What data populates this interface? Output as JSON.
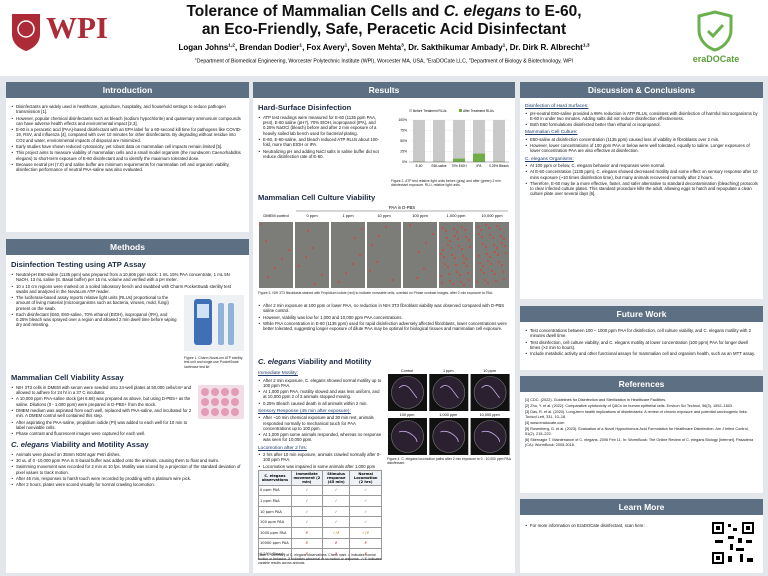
{
  "header": {
    "logo_left": "WPI",
    "title_1": "Tolerance of Mammalian Cells and ",
    "title_italic": "C. elegans",
    "title_2": " to E-60,",
    "title_line2": "an Eco-Friendly, Safe, Peracetic Acid Disinfectant",
    "authors": [
      {
        "name": "Logan Johns",
        "sup": "1,2"
      },
      {
        "name": "Brendan Dodier",
        "sup": "1"
      },
      {
        "name": "Fox Avery",
        "sup": "1"
      },
      {
        "name": "Soven Mehta",
        "sup": "3"
      },
      {
        "name": "Dr. Sakthikumar Ambady",
        "sup": "1"
      },
      {
        "name": "Dr. Dirk R. Albrecht",
        "sup": "1,3"
      }
    ],
    "affiliations": [
      {
        "sup": "1",
        "text": "Department of Biomedical Engineering, Worcester Polytechnic Institute (WPI), Worcester MA, USA, "
      },
      {
        "sup": "2",
        "text": "EraDOCate LLC, "
      },
      {
        "sup": "3",
        "text": "Department of Biology & Biotechnology, WPI"
      }
    ],
    "logo_right": "eraDOCate"
  },
  "introduction": {
    "heading": "Introduction",
    "bullets": [
      "Disinfectants are widely used in healthcare, agriculture, hospitality, and household settings to reduce pathogen transmission [1].",
      "However, popular chemical disinfectants such as bleach (sodium hypochlorite) and quaternary ammonium compounds can have adverse health effects and environmental impact [2,3].",
      "E-60 is a peracetic acid (PAA)-based disinfectant with an EPA label for a 60-second kill time for pathogens like COVID-19, RSV, and influenza [4], compared with over 10 minutes for other disinfectants. By degrading without residue into CO2 and water, environmental impacts of disposal are minimized.",
      "Early studies have shown reduced cytotoxicity, yet robust data on mammalian cell impacts remain limited [5].",
      "This project aims to measure viability of mammalian cells and a small model organism (the roundworm Caenorhabditis elegans) to short-term exposure of E-60 disinfectant and to identify the maximum tolerated dose.",
      "Because neutral pH (7.0) and saline buffer are minimum requirements for mammalian cell and organism viability, disinfection performance of neutral PAA-saline was also evaluated."
    ]
  },
  "methods": {
    "heading": "Methods",
    "atp": {
      "title": "Disinfection Testing using ATP Assay",
      "bullets": [
        "Neutral-pH E60-saline (1135 ppm) was prepared from a 10,606 ppm stock: 1 mL 15% PAA concentrate, 1 mL 5N NaOH, 13 mL saline (S. Basal buffer) per 15 mL volume and verified with a pH meter.",
        "10 x 10 cm regions were marked on a soiled laboratory bench and swabbed with Charm PocketSwab sterility test swabs and analyzed in the NovaLum ATP reader.",
        "The luciferase-based assay reports relative light units (RLUs) proportional to the amount of living material (microorganisms such as bacteria, viruses, mold, fungi) present on the swab.",
        "Each disinfectant (E60, E60-saline, 70% ethanol (EtOH), isopropanol (IPA), and 0.25% bleach was sprayed over a region and allowed 2 min dwell time before wiping dry and retesting."
      ],
      "figure1_caption": "Figure 1. Charm NovaLum ATP sterility test unit and single-use PocketSwab luciferase test kit"
    },
    "mammalian": {
      "title": "Mammalian Cell Viability Assay",
      "bullets": [
        "NIH 3T3 cells in DMEM with serum were seeded onto 24-well plates at 50,000 cells/cm² and allowed to adhere for 24 hr in a 37 C incubator.",
        "A 10,000 ppm PAA-saline stock (pH 6.68) was prepared as above, but using D-PBS+ as the saline. Dilutions (0 - 1,000 ppm) were prepared in D-PBS+ from the stock.",
        "DMEM medium was aspirated from each well, replaced with PAA-saline, and incubated for 2 min. A DMEM control well contained this step.",
        "After aspirating the PAA-saline, propidium iodide (PI) was added to each well for 10 min to label nonviable cells.",
        "Phase contrast and fluorescent images were captured for each well."
      ]
    },
    "elegans": {
      "title_italic": "C. elegans",
      "title_rest": " Viability and Motility Assay",
      "bullets": [
        "Animals were placed on 35mm NGM agar Petri dishes.",
        "30 uL of 0 -10,000 ppm PAA in S-basal buffer was added onto the animals, causing them to float and swim.",
        "Swimming movement was recorded for 2 min at 10 fps. Motility was scored by a projection of the standard deviation of pixel values to track motion.",
        "After 45 min, responses to harsh touch were recorded by prodding with a platinum wire pick.",
        "After 2 hours, plates were scored visually for normal crawling locomotion."
      ]
    }
  },
  "results": {
    "heading": "Results",
    "hard_surface": {
      "title": "Hard-Surface Disinfection",
      "bullets": [
        "ATP test readings were measured for E-60 (1135 ppm PAA, pH4), E-60 saline (pH7), 70% EtOH, isopropanol (IPA), and 0.25% NaOCl (bleach) before and after 2 min exposure of a heavily soiled lab bench used for bacterial plating.",
        "E-60, E-60-saline, and bleach reduced ATP RLUs about 100-fold, more than EtOH or IPA.",
        "Neutralizing pH and adding NaCl salts in saline buffer did not reduce disinfection rate of E-60."
      ],
      "figure2_caption": "Figure 2. ATP test relative light units before (gray) and after (green) 2 min disinfectant exposure. RLU, relative light units."
    },
    "cell": {
      "title": "Mammalian Cell Culture Viability",
      "figure3": {
        "group_label": "PAA in D-PBS",
        "columns": [
          "DMEM control",
          "0 ppm",
          "1 ppm",
          "10 ppm",
          "100 ppm",
          "1,000 ppm",
          "10,000 ppm"
        ],
        "caption": "Figure 3. NIH 3T3 fibroblasts stained with Propidium Iodide (red) to indicate nonviable cells, overlaid on Phase contrast images, after 2 min exposure to PAA."
      },
      "bullets": [
        "After 2 min exposure at 100 ppm or lower PAA, no reduction in NIH 3T3 fibroblast viability was observed compared with D-PBS saline control.",
        "However, viability was low for 1,000 and 10,000 ppm PAA concentrations.",
        "While PAA concentration in E-60 (1135 ppm) used for rapid disinfection adversely affected fibroblasts, lower concentrations were better tolerated, suggesting longer exposure of dilute PAA may be optimal for biological tissues and mammalian cell exposure."
      ]
    },
    "elegans": {
      "title_italic": "C. elegans",
      "title_rest": " Viability and Motility",
      "blocks": [
        {
          "title": "Immediate Motility:",
          "bullets": [
            "After 2 min exposure, C. elegans showed normal motility up to 100 ppm PAA.",
            "At 1,000 ppm PAA, motility slowed and was less uniform, and at 10,000 ppm 2 of 3 animals stopped moving.",
            "0.25% Bleach caused death in all animals within 2 min."
          ]
        },
        {
          "title": "Sensory Response (45 min after exposure):",
          "bullets": [
            "After ~10 min chemical exposure and 30 min rest, animals responded normally to mechanical touch for PAA concentrations up to 100 ppm.",
            "At 1,000 ppm some animals responded, whereas no response was seen for 10,000 ppm."
          ]
        },
        {
          "title": "Locomotion after 2 hrs:",
          "bullets": [
            "2 hrs after 10 min exposure, animals crawled normally after 0-100 ppm PAA.",
            "Locomotion was impaired in some animals after 1,000 ppm PAA and all exposed to 10,000 ppm."
          ]
        }
      ],
      "figure4": {
        "labels": [
          "Control",
          "1 ppm",
          "10 ppm",
          "100 ppm",
          "1,000 ppm",
          "10,000 ppm"
        ],
        "caption": "Figure 4. C. elegans locomotion paths after 2 min exposure to 0 - 10,000 ppm PAA disinfectant."
      },
      "table": {
        "header": [
          "C. elegans observations",
          "Immediate movement (2 min)",
          "Stimulus response (45 min)",
          "Normal Locomotion (2 hrs)"
        ],
        "rows": [
          [
            "0 ppm PAA",
            "✓",
            "✓",
            "✓"
          ],
          [
            "1 ppm PAA",
            "✓",
            "✓",
            "✓"
          ],
          [
            "10 ppm PAA",
            "✓",
            "✓",
            "✓"
          ],
          [
            "100 ppm PAA",
            "✓",
            "✓",
            "✓"
          ],
          [
            "1000 ppm PAA",
            "✗",
            "✓/✗",
            "✓/✗"
          ],
          [
            "10000 ppm PAA",
            "✗",
            "✗",
            "✗"
          ],
          [
            "0.25% Bleach",
            "✗",
            "✗",
            "✗"
          ]
        ],
        "caption": "Table 1. Summary of C. elegans observations. Check mark ✓ indicates normal motion or behavior. ✗ indicates abnormal or no motion or response. ✓/✗ indicates variable results across animals."
      }
    }
  },
  "chart_data": {
    "type": "bar",
    "categories": [
      "E-60",
      "E60-saline",
      "70% EtOH",
      "IPA",
      "0.25% Bleach"
    ],
    "series": [
      {
        "name": "Before Treatment RLUs",
        "color": "#c9c9c9",
        "values": [
          100,
          100,
          100,
          100,
          100
        ]
      },
      {
        "name": "After Treatment RLUs",
        "color": "#70ad47",
        "values": [
          1,
          1,
          8,
          20,
          1
        ]
      }
    ],
    "ylim": [
      0,
      100
    ],
    "yticks": [
      {
        "value": 0,
        "label": "0%"
      },
      {
        "value": 25,
        "label": "25%"
      },
      {
        "value": 50,
        "label": "50%"
      },
      {
        "value": 75,
        "label": "75%"
      },
      {
        "value": 100,
        "label": "100%"
      }
    ],
    "legend": "top"
  },
  "discussion": {
    "heading": "Discussion & Conclusions",
    "blocks": [
      {
        "title": "Disinfection of Hard Surfaces:",
        "bullets": [
          "pH-neutral E60-saline provided a 99% reduction in ATP RLUs, consistent with disinfection of harmful microorganisms by E-60 in under two minutes. Adding salts did not reduce disinfection effectiveness.",
          "Both E60 formulations disinfected better than ethanol or isopropanol."
        ]
      },
      {
        "title": "Mammalian Cell Culture:",
        "bullets": [
          "E60-saline at disinfection concentration (1135 ppm) caused loss of viability in fibroblasts over 2 min.",
          "However, lower concentrations of 100 ppm PAA or below were well tolerated, equally to saline. Longer exposures of lower concentration PAA are also effective at disinfection."
        ]
      },
      {
        "title": "C. elegans Organisms:",
        "bullets": [
          "At 100 ppm or below, C. elegans behavior and responses were normal.",
          "At E-60 concentration (1135 ppm), C. elegans showed decreased motility and some effect on sensory response after 10 mins exposure (~10 times disinfection time), but many animals recovered normally after 2 hours.",
          "Therefore, E-60 may be a more effective, faster, and safer alternative to standard decontamination (bleaching) protocols to clear infected culture plates. This standard procedure kills the adult, allowing eggs to hatch and repopulate a clean culture plate over several days [6]."
        ]
      }
    ]
  },
  "future_work": {
    "heading": "Future Work",
    "bullets": [
      "Test concentrations between 100 – 1000 ppm PAA for disinfection, cell culture viability, and C. elegans motility with 2 minutes dwell time.",
      "Test disinfection, cell culture viability, and C. elegans motility at lower concentration (100 ppm) PAA for longer dwell times (>2 min to hours).",
      "Include metabolic activity and other functional assays for mammalian cell and organism health, such as an MTT assay."
    ]
  },
  "references": {
    "heading": "References",
    "items": [
      "[1] CDC. (2022). Guidelines for Disinfection and Sterilization in Healthcare Facilities.",
      "[2] Zhu, Y. et al. (2022). Comparative cytotoxicity of QACs on human epithelial cells. Environ Sci Technol, 56(3), 1592–1603.",
      "[3] Das, R. et al. (2020). Long-term health implications of disinfectants: A review of chronic exposure and potential carcinogenic links. Toxicol Lett, 331, 10–18.",
      "[4] www.eradocate.com",
      "[5] Rosenberg, G. et al. (2023). Evaluation of a Novel Hypochlorous Acid Formulation for Healthcare Disinfection. Am J Infect Control, 51(2), 215–222.",
      "[6] Stiernagle T. Maintenance of C. elegans. 2006 Feb 11. In: WormBook: The Online Review of C. elegans Biology [Internet]. Pasadena (CA): WormBook; 2005-2018."
    ]
  },
  "learn_more": {
    "heading": "Learn More",
    "bullets": [
      "For more information on EraDOCate disinfectant, scan here:"
    ]
  }
}
